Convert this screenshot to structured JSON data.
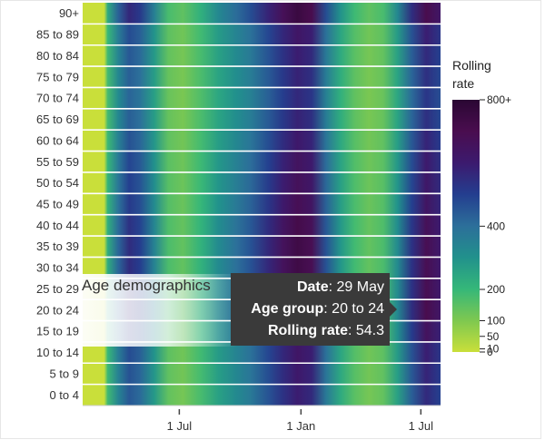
{
  "chart_data": {
    "type": "heatmap",
    "title": "",
    "xlabel": "",
    "ylabel": "",
    "y_categories": [
      "90+",
      "85 to 89",
      "80 to 84",
      "75 to 79",
      "70 to 74",
      "65 to 69",
      "60 to 64",
      "55 to 59",
      "50 to 54",
      "45 to 49",
      "40 to 44",
      "35 to 39",
      "30 to 34",
      "25 to 29",
      "20 to 24",
      "15 to 19",
      "10 to 14",
      "5 to 9",
      "0 to 4"
    ],
    "x_ticks": [
      {
        "label": "1 Jul",
        "t": 0.27
      },
      {
        "label": "1 Jan",
        "t": 0.61
      },
      {
        "label": "1 Jul",
        "t": 0.945
      }
    ],
    "colorbar": {
      "title_lines": [
        "Rolling",
        "rate"
      ],
      "ticks": [
        {
          "label": "800+",
          "value": 800
        },
        {
          "label": "400",
          "value": 400
        },
        {
          "label": "200",
          "value": 200
        },
        {
          "label": "100",
          "value": 100
        },
        {
          "label": "50",
          "value": 50
        },
        {
          "label": "10",
          "value": 10
        },
        {
          "label": "0",
          "value": 0
        }
      ],
      "colors": [
        "#c9df3a",
        "#7ec850",
        "#35b779",
        "#21918c",
        "#2c6f9a",
        "#243e8f",
        "#3c1a6e",
        "#4a0d4f",
        "#2a0733"
      ]
    },
    "profile": [
      {
        "t": 0.0,
        "v": 0.0
      },
      {
        "t": 0.06,
        "v": 0.02
      },
      {
        "t": 0.07,
        "v": 0.3
      },
      {
        "t": 0.1,
        "v": 0.55
      },
      {
        "t": 0.13,
        "v": 0.72
      },
      {
        "t": 0.16,
        "v": 0.66
      },
      {
        "t": 0.2,
        "v": 0.45
      },
      {
        "t": 0.24,
        "v": 0.22
      },
      {
        "t": 0.28,
        "v": 0.18
      },
      {
        "t": 0.33,
        "v": 0.28
      },
      {
        "t": 0.38,
        "v": 0.42
      },
      {
        "t": 0.43,
        "v": 0.52
      },
      {
        "t": 0.47,
        "v": 0.6
      },
      {
        "t": 0.52,
        "v": 0.74
      },
      {
        "t": 0.56,
        "v": 0.86
      },
      {
        "t": 0.6,
        "v": 0.96
      },
      {
        "t": 0.64,
        "v": 0.9
      },
      {
        "t": 0.68,
        "v": 0.6
      },
      {
        "t": 0.72,
        "v": 0.38
      },
      {
        "t": 0.76,
        "v": 0.24
      },
      {
        "t": 0.8,
        "v": 0.18
      },
      {
        "t": 0.84,
        "v": 0.22
      },
      {
        "t": 0.88,
        "v": 0.42
      },
      {
        "t": 0.92,
        "v": 0.7
      },
      {
        "t": 0.96,
        "v": 0.9
      },
      {
        "t": 1.0,
        "v": 0.8
      }
    ],
    "row_weights": [
      0.95,
      0.6,
      0.5,
      0.45,
      0.4,
      0.45,
      0.55,
      0.65,
      0.7,
      0.75,
      0.85,
      0.9,
      0.9,
      0.9,
      0.95,
      0.8,
      0.6,
      0.55,
      0.5
    ]
  },
  "overlay": {
    "label": "Age demographics"
  },
  "tooltip": {
    "date_key": "Date",
    "date_value": ": 29 May",
    "age_key": "Age group",
    "age_value": ": 20 to 24",
    "rate_key": "Rolling rate",
    "rate_value": ": 54.3"
  }
}
